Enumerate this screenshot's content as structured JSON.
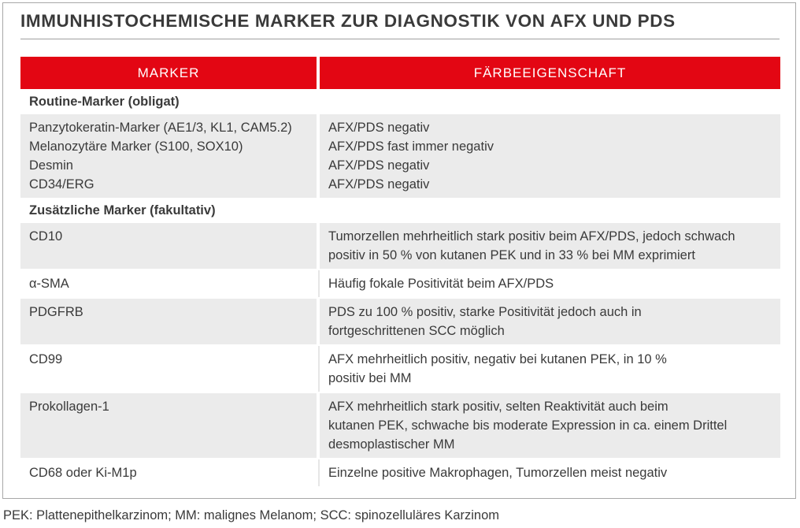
{
  "title": "IMMUNHISTOCHEMISCHE MARKER ZUR DIAGNOSTIK VON AFX UND PDS",
  "header": {
    "marker": "MARKER",
    "property": "FÄRBEEIGENSCHAFT"
  },
  "sections": [
    {
      "label": "Routine-Marker (obligat)"
    },
    {
      "label": "Zusätzliche Marker (fakultativ)"
    }
  ],
  "routine": {
    "markers": [
      "Panzytokeratin-Marker (AE1/3, KL1, CAM5.2)",
      "Melanozytäre Marker (S100, SOX10)",
      "Desmin",
      "CD34/ERG"
    ],
    "properties": [
      "AFX/PDS negativ",
      "AFX/PDS fast immer negativ",
      "AFX/PDS negativ",
      "AFX/PDS negativ"
    ]
  },
  "rows": [
    {
      "marker": "CD10",
      "lines": [
        "Tumorzellen mehrheitlich stark positiv beim AFX/PDS, jedoch schwach",
        "positiv in 50 % von kutanen PEK und in 33 % bei MM exprimiert"
      ]
    },
    {
      "marker": "α-SMA",
      "lines": [
        "Häufig fokale Positivität beim AFX/PDS"
      ]
    },
    {
      "marker": "PDGFRB",
      "lines": [
        "PDS zu 100 % positiv, starke Positivität jedoch auch in",
        "fortgeschrittenen SCC möglich"
      ]
    },
    {
      "marker": "CD99",
      "lines": [
        "AFX mehrheitlich positiv, negativ bei kutanen PEK, in 10 %",
        "positiv bei MM"
      ]
    },
    {
      "marker": "Prokollagen-1",
      "lines": [
        "AFX mehrheitlich stark positiv, selten Reaktivität auch beim",
        "kutanen PEK, schwache bis moderate Expression in ca. einem Drittel",
        "desmoplastischer MM"
      ]
    },
    {
      "marker": "CD68 oder Ki-M1p",
      "lines": [
        "Einzelne positive Makrophagen, Tumorzellen meist negativ"
      ]
    }
  ],
  "footnote": "PEK: Plattenepithelkarzinom; MM: malignes Melanom; SCC: spinozelluläres Karzinom",
  "colors": {
    "header": "#e30613",
    "row_shade": "#ebebeb",
    "text": "#3a3a3a"
  }
}
